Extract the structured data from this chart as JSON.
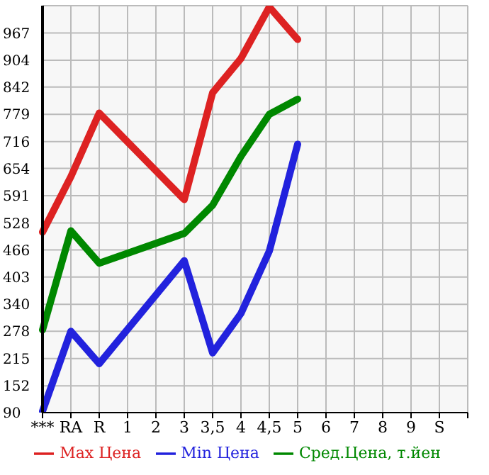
{
  "chart_data": {
    "type": "line",
    "categories": [
      "***",
      "RA",
      "R",
      "1",
      "2",
      "3",
      "3,5",
      "4",
      "4,5",
      "5",
      "6",
      "7",
      "8",
      "9",
      "S",
      null
    ],
    "series": [
      {
        "name": "Max Цена",
        "color": "#dd2222",
        "values": [
          507,
          635,
          782,
          null,
          null,
          582,
          829,
          908,
          1027,
          952,
          null,
          null,
          null,
          null,
          null,
          null
        ]
      },
      {
        "name": "Min Цена",
        "color": "#2222dd",
        "values": [
          93,
          278,
          203,
          null,
          null,
          441,
          228,
          319,
          463,
          710,
          null,
          null,
          null,
          null,
          null,
          null
        ]
      },
      {
        "name": "Сред.Цена, т.йен",
        "color": "#008800",
        "values": [
          281,
          510,
          435,
          null,
          null,
          504,
          569,
          682,
          779,
          814,
          null,
          null,
          null,
          null,
          null,
          null
        ]
      }
    ],
    "ylim": [
      90,
      1030
    ],
    "yticks": [
      90,
      152,
      215,
      278,
      340,
      403,
      466,
      528,
      591,
      654,
      716,
      779,
      842,
      904,
      967,
      {
        "value": 1030,
        "label": null
      }
    ],
    "grid": true,
    "legend": "bottom",
    "marker": "none",
    "line_style": "solid"
  }
}
